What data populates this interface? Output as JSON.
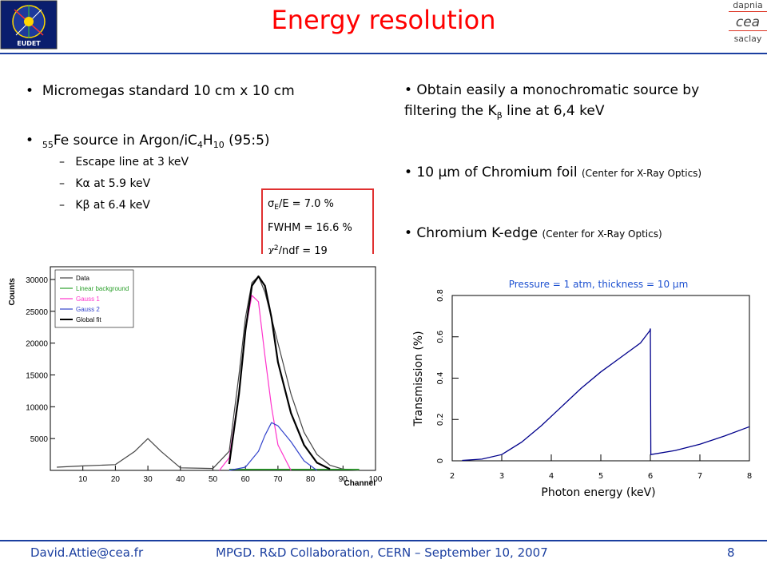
{
  "slide": {
    "title": "Energy resolution",
    "page": "8",
    "footer_email": "David.Attie@cea.fr",
    "footer_event": "MPGD. R&D Collaboration, CERN – September 10, 2007",
    "logo_right": [
      "dapnia",
      "cea",
      "saclay"
    ],
    "logo_left": "EUDET"
  },
  "left": {
    "bullet1": "Micromegas standard 10 cm x 10 cm",
    "bullet2_sup": "55",
    "bullet2_a": "Fe source in Argon/iC",
    "bullet2_s1": "4",
    "bullet2_b": "H",
    "bullet2_s2": "10",
    "bullet2_c": " (95:5)",
    "sub": [
      "Escape line at 3 keV",
      "Kα at 5.9 keV",
      "Kβ at 6.4 keV"
    ]
  },
  "fitbox": {
    "r1_label": "σ",
    "r1_sub": "E",
    "r1_rest": "/E     = 7.0 %",
    "r2": "FWHM = 16.6 %",
    "r3_label": "χ",
    "r3_sup": "2",
    "r3_rest": "/ndf  = 19"
  },
  "right": {
    "bullet1_a": "• Obtain easily a monochromatic source by",
    "bullet1_b": "filtering the K",
    "bullet1_sub": "β",
    "bullet1_c": " line at 6,4 keV",
    "bullet2_a": "• 10 μm of Chromium foil ",
    "bullet2_b": "(Center for X-Ray Optics)",
    "bullet3_a": "• Chromium K-edge ",
    "bullet3_b": "(Center for X-Ray Optics)"
  },
  "chart_data": [
    {
      "type": "line",
      "title": "",
      "xlabel": "Channel",
      "ylabel": "Counts",
      "xlim": [
        0,
        100
      ],
      "ylim": [
        0,
        32000
      ],
      "x_ticks": [
        10,
        20,
        30,
        40,
        50,
        60,
        70,
        80,
        90,
        100
      ],
      "y_ticks": [
        5000,
        10000,
        15000,
        20000,
        25000,
        30000
      ],
      "legend_position": "top-left",
      "series": [
        {
          "name": "Data",
          "color": "#444444",
          "x": [
            2,
            10,
            20,
            26,
            30,
            34,
            40,
            50,
            55,
            58,
            60,
            62,
            64,
            66,
            70,
            74,
            78,
            82,
            86,
            90,
            95
          ],
          "y": [
            500,
            700,
            900,
            3000,
            5000,
            3000,
            400,
            300,
            3000,
            15000,
            24000,
            29500,
            30500,
            28000,
            20000,
            12000,
            6000,
            2500,
            800,
            200,
            0
          ]
        },
        {
          "name": "Linear background",
          "color": "#2ca02c",
          "x": [
            55,
            95
          ],
          "y": [
            150,
            150
          ]
        },
        {
          "name": "Gauss 1",
          "color": "#ff33cc",
          "x": [
            52,
            55,
            58,
            60,
            62,
            64,
            66,
            68,
            70,
            74
          ],
          "y": [
            0,
            2000,
            12000,
            22000,
            27500,
            26500,
            18000,
            10000,
            4000,
            0
          ]
        },
        {
          "name": "Gauss 2",
          "color": "#3344cc",
          "x": [
            55,
            60,
            64,
            66,
            68,
            70,
            74,
            78,
            82
          ],
          "y": [
            0,
            500,
            3000,
            5500,
            7500,
            7000,
            4500,
            1500,
            0
          ]
        },
        {
          "name": "Global fit",
          "color": "#000000",
          "x": [
            55,
            58,
            60,
            62,
            64,
            66,
            68,
            70,
            74,
            78,
            82,
            86
          ],
          "y": [
            1000,
            12000,
            22000,
            29000,
            30500,
            29000,
            24000,
            17000,
            9000,
            4000,
            1200,
            200
          ]
        }
      ]
    },
    {
      "type": "line",
      "title": "Pressure = 1 atm, thickness = 10 μm",
      "xlabel": "Photon energy (keV)",
      "ylabel": "Transmission (%)",
      "xlim": [
        2,
        8
      ],
      "ylim": [
        0,
        0.8
      ],
      "x_ticks": [
        2,
        3,
        4,
        5,
        6,
        7,
        8
      ],
      "y_ticks": [
        0,
        0.2,
        0.4,
        0.6,
        0.8
      ],
      "series": [
        {
          "name": "",
          "color": "#00008b",
          "x": [
            2.2,
            2.6,
            3.0,
            3.4,
            3.8,
            4.2,
            4.6,
            5.0,
            5.4,
            5.8,
            5.99,
            6.0,
            6.01,
            6.5,
            7.0,
            7.5,
            8.0
          ],
          "y": [
            0.002,
            0.008,
            0.03,
            0.09,
            0.17,
            0.26,
            0.35,
            0.43,
            0.5,
            0.57,
            0.63,
            0.64,
            0.03,
            0.05,
            0.08,
            0.12,
            0.165
          ]
        }
      ]
    }
  ]
}
